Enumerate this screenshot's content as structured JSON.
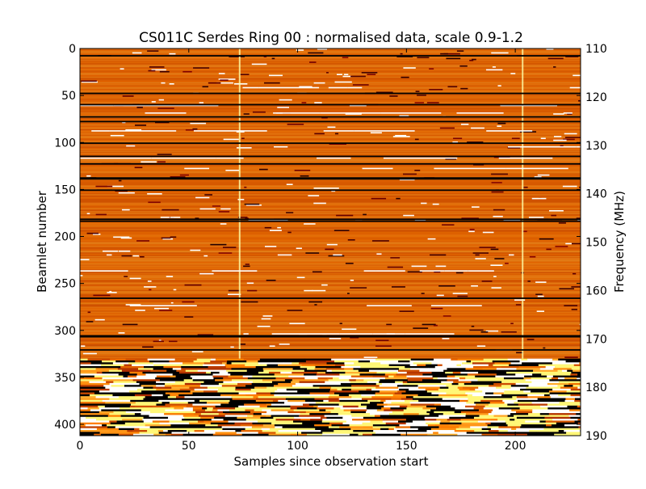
{
  "chart_data": {
    "type": "heatmap",
    "title": "CS011C Serdes Ring 00 : normalised data, scale 0.9-1.2",
    "xlabel": "Samples since observation start",
    "ylabel": "Beamlet number",
    "y2label": "Frequency (MHz)",
    "xlim": [
      0,
      230
    ],
    "ylim": [
      412,
      0
    ],
    "y2lim": [
      110,
      190
    ],
    "xticks": [
      "0",
      "50",
      "100",
      "150",
      "200"
    ],
    "yticks": [
      "0",
      "50",
      "100",
      "150",
      "200",
      "250",
      "300",
      "350",
      "400"
    ],
    "y2ticks": [
      "110",
      "120",
      "130",
      "140",
      "150",
      "160",
      "170",
      "180",
      "190"
    ],
    "colormap": "afmhot",
    "color_scale": [
      0.9,
      1.2
    ],
    "dark_rows": [
      7,
      47,
      59,
      72,
      77,
      100,
      114,
      122,
      137,
      138,
      150,
      181,
      183,
      265,
      305,
      306,
      320
    ],
    "bright_rows": [
      41,
      60,
      68,
      87,
      104,
      116,
      127,
      148,
      182,
      236,
      273,
      303,
      336,
      342
    ],
    "bright_columns": [
      73,
      203
    ],
    "band_region": [
      330,
      412
    ],
    "colors": {
      "low": "#000000",
      "mid": "#b53d00",
      "high": "#ffffff",
      "background": "#ffffff",
      "axis": "#000000"
    }
  }
}
